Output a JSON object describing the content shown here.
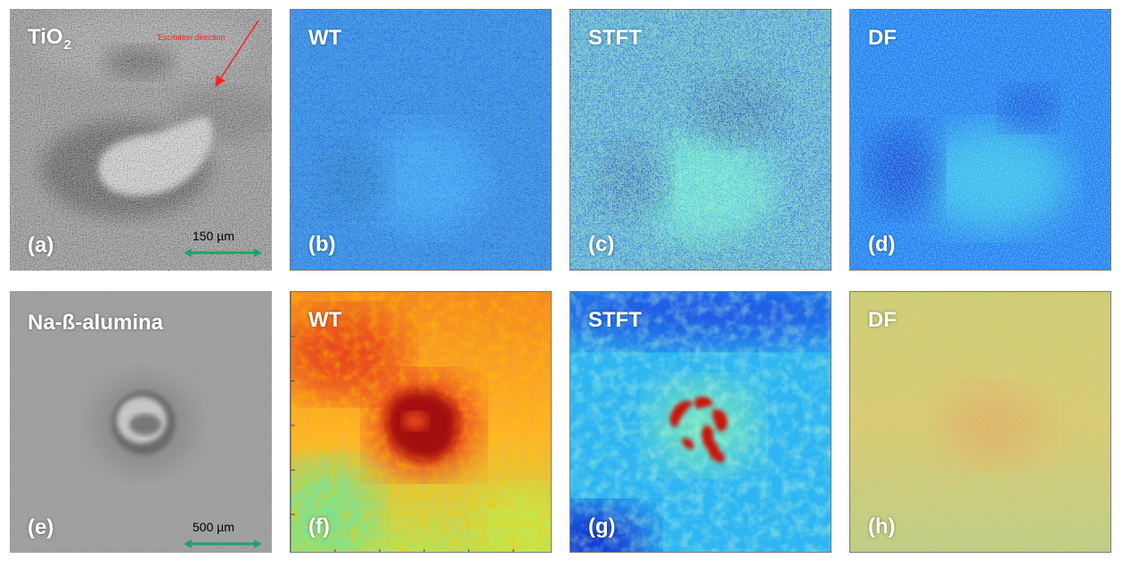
{
  "panels": [
    {
      "id": "a",
      "title": "TiO",
      "title_sub": "2",
      "letter": "(a)",
      "scale_label": "150 µm",
      "annotation": "Excitation direction",
      "type": "photo"
    },
    {
      "id": "b",
      "title": "WT",
      "letter": "(b)",
      "type": "map"
    },
    {
      "id": "c",
      "title": "STFT",
      "letter": "(c)",
      "type": "map"
    },
    {
      "id": "d",
      "title": "DF",
      "letter": "(d)",
      "type": "map"
    },
    {
      "id": "e",
      "title": "Na-ß-alumina",
      "letter": "(e)",
      "scale_label": "500 µm",
      "type": "photo"
    },
    {
      "id": "f",
      "title": "WT",
      "letter": "(f)",
      "type": "map"
    },
    {
      "id": "g",
      "title": "STFT",
      "letter": "(g)",
      "type": "map"
    },
    {
      "id": "h",
      "title": "DF",
      "letter": "(h)",
      "type": "map"
    }
  ],
  "colors": {
    "scale_arrow": "#1fa36a",
    "annotation": "#ff2222",
    "label_text": "#ffffff",
    "jet_low": "#00008f",
    "jet_high": "#800000"
  }
}
